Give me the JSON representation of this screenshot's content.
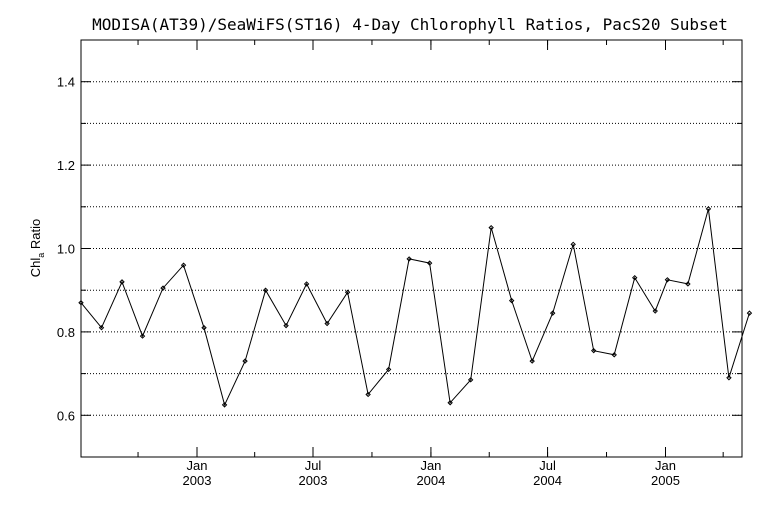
{
  "chart_data": {
    "type": "line",
    "title": "MODISA(AT39)/SeaWiFS(ST16) 4-Day Chlorophyll Ratios, PacS20 Subset",
    "ylabel_main": "Chl",
    "ylabel_sub": "a",
    "ylabel_rest": " Ratio",
    "ylim": [
      0.5,
      1.5
    ],
    "yticks": [
      "0.6",
      "0.8",
      "1.0",
      "1.2",
      "1.4"
    ],
    "xticks": [
      {
        "month": "Jan",
        "year": "2003"
      },
      {
        "month": "Jul",
        "year": "2003"
      },
      {
        "month": "Jan",
        "year": "2004"
      },
      {
        "month": "Jul",
        "year": "2004"
      },
      {
        "month": "Jan",
        "year": "2005"
      }
    ],
    "grid": "horizontal dotted",
    "x": [
      "2002-07-04",
      "2002-08-05",
      "2002-09-06",
      "2002-10-08",
      "2002-11-09",
      "2002-12-11",
      "2003-01-12",
      "2003-02-13",
      "2003-03-17",
      "2003-04-18",
      "2003-05-20",
      "2003-06-21",
      "2003-07-23",
      "2003-08-24",
      "2003-09-25",
      "2003-10-27",
      "2003-11-28",
      "2003-12-30",
      "2004-01-31",
      "2004-03-03",
      "2004-04-04",
      "2004-05-06",
      "2004-06-07",
      "2004-07-09",
      "2004-08-10",
      "2004-09-11",
      "2004-10-13",
      "2004-11-14",
      "2004-12-16",
      "2005-01-04",
      "2005-02-05",
      "2005-03-09",
      "2005-04-10",
      "2005-05-12"
    ],
    "values": [
      0.87,
      0.81,
      0.92,
      0.79,
      0.905,
      0.96,
      0.81,
      0.625,
      0.73,
      0.9,
      0.815,
      0.915,
      0.82,
      0.895,
      0.65,
      0.71,
      0.975,
      0.965,
      0.63,
      0.685,
      1.05,
      0.875,
      0.73,
      0.845,
      1.01,
      0.755,
      0.745,
      0.93,
      0.85,
      0.925,
      0.915,
      1.095,
      0.69,
      0.845
    ]
  }
}
